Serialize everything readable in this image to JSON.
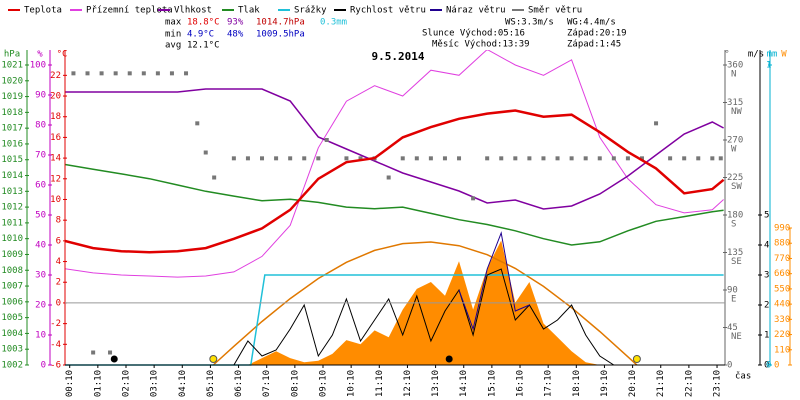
{
  "chart_data": {
    "type": "line",
    "title": "9.5.2014",
    "x_axis_label": "čas",
    "xlim": [
      0,
      23.45
    ],
    "xticks": [
      {
        "value": 0.167,
        "label": "00:10"
      },
      {
        "value": 1.167,
        "label": "01:10"
      },
      {
        "value": 2.167,
        "label": "02:10"
      },
      {
        "value": 3.167,
        "label": "03:10"
      },
      {
        "value": 4.167,
        "label": "04:10"
      },
      {
        "value": 5.167,
        "label": "05:10"
      },
      {
        "value": 6.167,
        "label": "06:10"
      },
      {
        "value": 7.167,
        "label": "07:10"
      },
      {
        "value": 8.167,
        "label": "08:10"
      },
      {
        "value": 9.167,
        "label": "09:10"
      },
      {
        "value": 10.167,
        "label": "10:10"
      },
      {
        "value": 11.167,
        "label": "11:10"
      },
      {
        "value": 12.167,
        "label": "12:10"
      },
      {
        "value": 13.167,
        "label": "13:10"
      },
      {
        "value": 14.167,
        "label": "14:10"
      },
      {
        "value": 15.167,
        "label": "15:10"
      },
      {
        "value": 16.167,
        "label": "16:10"
      },
      {
        "value": 17.167,
        "label": "17:10"
      },
      {
        "value": 18.167,
        "label": "18:10"
      },
      {
        "value": 19.167,
        "label": "19:10"
      },
      {
        "value": 20.167,
        "label": "20:10"
      },
      {
        "value": 21.167,
        "label": "21:10"
      },
      {
        "value": 22.167,
        "label": "22:10"
      },
      {
        "value": 23.167,
        "label": "23:10"
      }
    ],
    "x": [
      0,
      1,
      2,
      3,
      4,
      5,
      6,
      7,
      8,
      9,
      10,
      11,
      12,
      13,
      14,
      15,
      16,
      17,
      18,
      19,
      20,
      21,
      22,
      23,
      23.4
    ],
    "axes": {
      "hpa": {
        "label": "hPa",
        "color": "#228b22",
        "ylim": [
          1002,
          1021
        ],
        "yticks": [
          1002,
          1003,
          1004,
          1005,
          1006,
          1007,
          1008,
          1009,
          1010,
          1011,
          1012,
          1013,
          1014,
          1015,
          1016,
          1017,
          1018,
          1019,
          1020,
          1021
        ]
      },
      "pct": {
        "label": "%",
        "color": "#c000c0",
        "ylim": [
          0,
          100
        ],
        "yticks": [
          0,
          10,
          20,
          30,
          40,
          50,
          60,
          70,
          80,
          90,
          100
        ]
      },
      "temp": {
        "label": "°C",
        "color": "#e00000",
        "ylim": [
          -6,
          23
        ],
        "yticks": [
          -6,
          -4,
          -2,
          0,
          2,
          4,
          6,
          8,
          10,
          12,
          14,
          16,
          18,
          20,
          22
        ]
      },
      "deg": {
        "label": "°",
        "color": "#666666",
        "ylim": [
          0,
          360
        ],
        "yticks": [
          0,
          45,
          90,
          135,
          180,
          225,
          270,
          315,
          360
        ],
        "compass": [
          null,
          "NE",
          "E",
          "SE",
          "S",
          "SW",
          "W",
          "NW",
          "N"
        ]
      },
      "ms": {
        "label": "m/s",
        "color": "#000000",
        "ylim": [
          0,
          10
        ],
        "yticks": [
          0,
          1,
          2,
          3,
          4,
          5
        ]
      },
      "mm": {
        "label": "mm",
        "color": "#00b0d0",
        "ylim": [
          0,
          1
        ],
        "yticks": [
          0,
          1
        ]
      },
      "wm2": {
        "label": "W",
        "color": "#ff8c00",
        "ylim": [
          0,
          2168
        ],
        "yticks": [
          0,
          110,
          220,
          330,
          440,
          550,
          660,
          770,
          880,
          990
        ]
      }
    },
    "reference_line": {
      "axis": "temp",
      "value": 0,
      "color": "#999999"
    },
    "radiation": {
      "axis": "wm2",
      "color": "#ff8c00",
      "x": [
        6.5,
        7,
        7.5,
        8,
        8.5,
        9,
        9.5,
        10,
        10.5,
        11,
        11.5,
        12,
        12.5,
        13,
        13.5,
        14,
        14.5,
        15,
        15.5,
        16,
        16.5,
        17,
        17.5,
        18,
        18.5,
        19
      ],
      "values": [
        0,
        50,
        100,
        50,
        20,
        30,
        80,
        180,
        150,
        250,
        200,
        400,
        550,
        600,
        500,
        750,
        400,
        700,
        900,
        450,
        600,
        300,
        200,
        100,
        20,
        0
      ]
    },
    "sun_curve": {
      "axis": "wm2",
      "color": "#e07800",
      "x": [
        5.27,
        6,
        7,
        8,
        9,
        10,
        11,
        12,
        13,
        14,
        15,
        16,
        17,
        18,
        19,
        20,
        20.32
      ],
      "values": [
        0,
        135,
        314,
        480,
        625,
        742,
        828,
        877,
        889,
        862,
        797,
        698,
        568,
        414,
        242,
        59,
        0
      ]
    },
    "sun_markers": {
      "color": "#ffe000",
      "x": [
        5.27,
        20.32
      ]
    },
    "moon_markers": {
      "color": "#000000",
      "x": [
        1.75,
        13.65
      ]
    },
    "series": [
      {
        "name": "Teplota",
        "color": "#e00000",
        "axis": "temp",
        "style": "line",
        "width": 2.5,
        "values": [
          6.0,
          5.3,
          5.0,
          4.9,
          5.0,
          5.3,
          6.2,
          7.2,
          9.0,
          12.0,
          13.6,
          14.0,
          16.0,
          17.0,
          17.8,
          18.3,
          18.6,
          18.0,
          18.2,
          16.5,
          14.6,
          13.0,
          10.6,
          11.0,
          11.9
        ]
      },
      {
        "name": "Přízemní teplota",
        "color": "#e040e0",
        "axis": "temp",
        "style": "line",
        "width": 1,
        "values": [
          3.3,
          2.9,
          2.7,
          2.6,
          2.5,
          2.6,
          3.0,
          4.5,
          7.5,
          15.0,
          19.5,
          21.0,
          20.0,
          22.5,
          22.0,
          24.5,
          23.0,
          22.0,
          23.5,
          16.0,
          12.0,
          9.5,
          8.7,
          9.0,
          10.0
        ]
      },
      {
        "name": "Vlhkost",
        "color": "#8000a0",
        "axis": "pct",
        "style": "line",
        "width": 1.5,
        "values": [
          91,
          91,
          91,
          91,
          91,
          92,
          92,
          92,
          88,
          76,
          72,
          68,
          64,
          61,
          58,
          54,
          55,
          52,
          53,
          57,
          63,
          70,
          77,
          81,
          79
        ]
      },
      {
        "name": "Tlak",
        "color": "#228b22",
        "axis": "hpa",
        "style": "line",
        "width": 1.5,
        "values": [
          1014.7,
          1014.4,
          1014.1,
          1013.8,
          1013.4,
          1013.0,
          1012.7,
          1012.4,
          1012.5,
          1012.3,
          1012.0,
          1011.9,
          1012.0,
          1011.6,
          1011.2,
          1010.9,
          1010.5,
          1010.0,
          1009.6,
          1009.8,
          1010.5,
          1011.1,
          1011.4,
          1011.7,
          1011.8
        ]
      },
      {
        "name": "Srážky",
        "color": "#20c0d8",
        "axis": "mm",
        "style": "line",
        "width": 1.5,
        "x": [
          0,
          6.6,
          7.1,
          23.4
        ],
        "values": [
          0,
          0,
          0.3,
          0.3
        ]
      },
      {
        "name": "Rychlost větru",
        "color": "#000000",
        "axis": "ms",
        "style": "line",
        "width": 1,
        "x": [
          0,
          6,
          6.5,
          7,
          7.5,
          8,
          8.5,
          9,
          9.5,
          10,
          10.5,
          11,
          11.5,
          12,
          12.5,
          13,
          13.5,
          14,
          14.5,
          15,
          15.5,
          16,
          16.5,
          17,
          17.5,
          18,
          18.5,
          19,
          19.5,
          23.4
        ],
        "values": [
          0,
          0,
          0.8,
          0.3,
          0.5,
          1.2,
          2.0,
          0.3,
          1.0,
          2.2,
          0.8,
          1.5,
          2.2,
          1.0,
          2.3,
          0.8,
          1.8,
          2.5,
          1.0,
          3.0,
          3.2,
          1.5,
          2.0,
          1.2,
          1.5,
          2.0,
          1.0,
          0.3,
          0,
          0
        ]
      },
      {
        "name": "Náraz větru",
        "color": "#200090",
        "axis": "ms",
        "style": "line",
        "width": 1,
        "x": [
          14,
          14.5,
          15,
          15.5,
          16,
          16.5
        ],
        "values": [
          2.5,
          1.2,
          3.2,
          4.4,
          1.8,
          2.0
        ]
      },
      {
        "name": "Směr větru",
        "color": "#777777",
        "axis": "deg",
        "style": "points",
        "x": [
          0.3,
          0.8,
          1.3,
          1.8,
          2.3,
          2.8,
          3.3,
          3.8,
          4.3,
          4.7,
          5.0,
          5.3,
          1.0,
          1.6,
          6.0,
          6.5,
          7.0,
          7.5,
          8.0,
          8.5,
          9.0,
          9.3,
          10,
          10.5,
          11,
          11.5,
          12,
          12.5,
          13,
          13.5,
          14,
          14.5,
          15,
          15.5,
          16,
          16.5,
          17,
          17.5,
          18,
          18.5,
          19,
          19.5,
          20,
          20.5,
          21,
          21.5,
          22,
          22.5,
          23,
          23.3
        ],
        "values": [
          350,
          350,
          350,
          350,
          350,
          350,
          350,
          350,
          350,
          290,
          255,
          225,
          15,
          15,
          248,
          248,
          248,
          248,
          248,
          248,
          248,
          270,
          248,
          248,
          248,
          225,
          248,
          248,
          248,
          248,
          248,
          200,
          248,
          248,
          248,
          248,
          248,
          248,
          248,
          248,
          248,
          248,
          248,
          248,
          290,
          248,
          248,
          248,
          248,
          248
        ]
      }
    ]
  },
  "stats": {
    "max": [
      "max",
      "18.8°C",
      "93%",
      "1014.7hPa",
      "0.3mm"
    ],
    "min": [
      "min",
      "4.9°C",
      "48%",
      "1009.5hPa"
    ],
    "avg": [
      "avg",
      "12.1°C"
    ]
  },
  "wind": {
    "ws": "WS:3.3m/s",
    "wg": "WG:4.4m/s"
  },
  "sun": {
    "rise": "Slunce Východ:05:16",
    "set": "Západ:20:19"
  },
  "moon": {
    "rise": "Měsíc Východ:13:39",
    "set": "Západ:1:45"
  }
}
